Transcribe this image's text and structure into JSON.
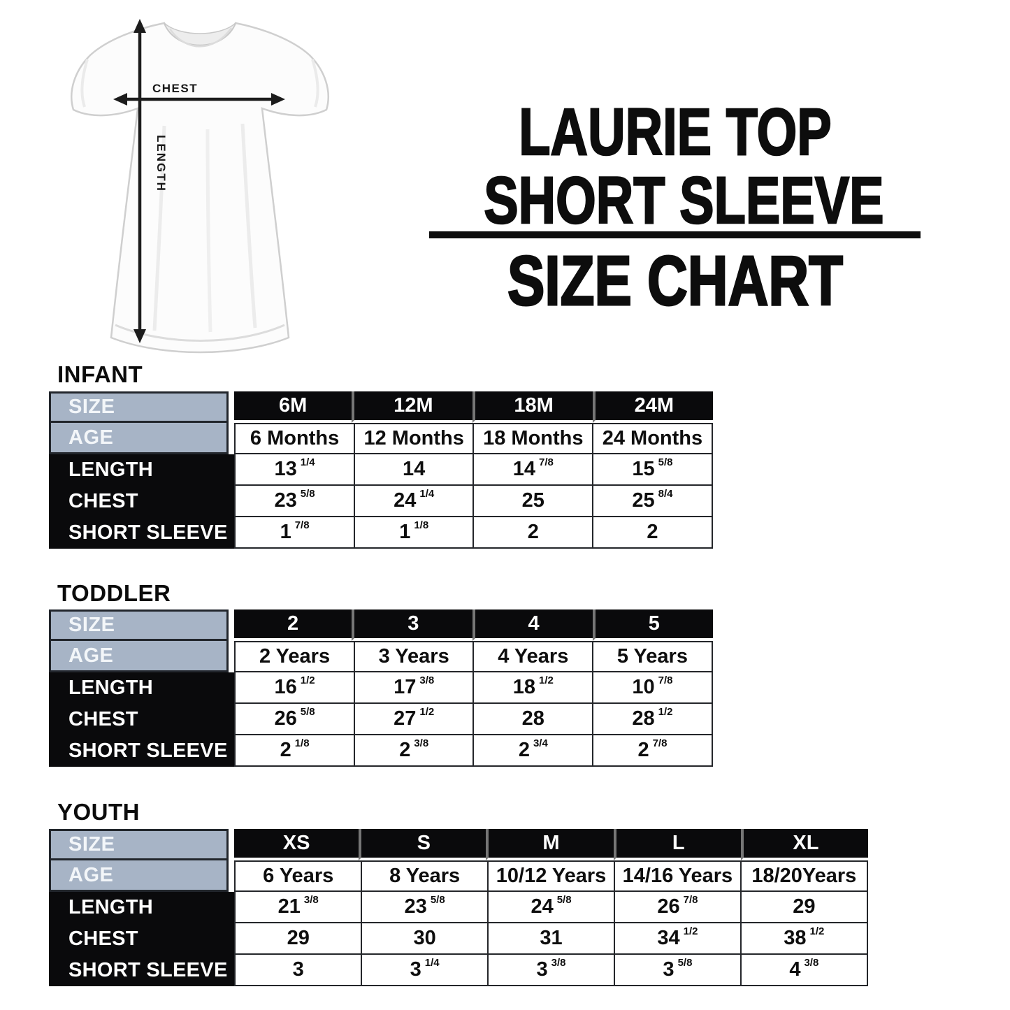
{
  "title": {
    "line1": "LAURIE TOP",
    "line2": "SHORT SLEEVE",
    "line3": "SIZE CHART"
  },
  "diagram": {
    "chest_label": "CHEST",
    "length_label": "LENGTH"
  },
  "row_labels": {
    "size": "SIZE",
    "age": "AGE",
    "length": "LENGTH",
    "chest": "CHEST",
    "sleeve": "SHORT SLEEVE"
  },
  "tables": [
    {
      "section": "INFANT",
      "sizes": [
        "6M",
        "12M",
        "18M",
        "24M"
      ],
      "ages": [
        "6 Months",
        "12 Months",
        "18 Months",
        "24 Months"
      ],
      "length": [
        "13 1/4",
        "14",
        "14 7/8",
        "15 5/8"
      ],
      "chest": [
        "23 5/8",
        "24 1/4",
        "25",
        "25 8/4"
      ],
      "short_sleeve": [
        "1 7/8",
        "1 1/8",
        "2",
        "2"
      ]
    },
    {
      "section": "TODDLER",
      "sizes": [
        "2",
        "3",
        "4",
        "5"
      ],
      "ages": [
        "2 Years",
        "3 Years",
        "4 Years",
        "5 Years"
      ],
      "length": [
        "16 1/2",
        "17 3/8",
        "18 1/2",
        "10 7/8"
      ],
      "chest": [
        "26 5/8",
        "27 1/2",
        "28",
        "28 1/2"
      ],
      "short_sleeve": [
        "2 1/8",
        "2 3/8",
        "2 3/4",
        "2 7/8"
      ]
    },
    {
      "section": "YOUTH",
      "sizes": [
        "XS",
        "S",
        "M",
        "L",
        "XL"
      ],
      "ages": [
        "6 Years",
        "8 Years",
        "10/12 Years",
        "14/16 Years",
        "18/20Years"
      ],
      "length": [
        "21 3/8",
        "23 5/8",
        "24 5/8",
        "26 7/8",
        "29"
      ],
      "chest": [
        "29",
        "30",
        "31",
        "34 1/2",
        "38 1/2"
      ],
      "short_sleeve": [
        "3",
        "3 1/4",
        "3 3/8",
        "3 5/8",
        "4 3/8"
      ]
    }
  ],
  "colors": {
    "label_blue": "#a7b4c6",
    "cell_black": "#0a0a0c",
    "border_dark": "#22262c",
    "title_black": "#0d0d0d",
    "arrow_black": "#1c1c1c"
  }
}
